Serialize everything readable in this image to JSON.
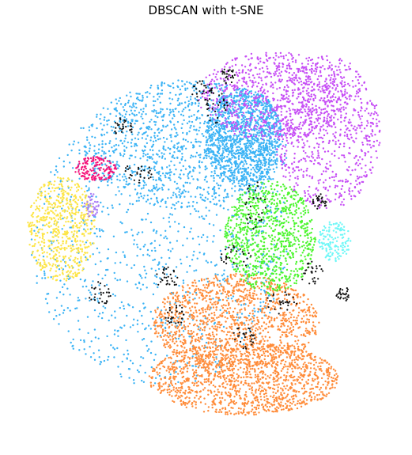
{
  "chart_data": {
    "type": "scatter",
    "title": "DBSCAN with t-SNE",
    "xlabel": "",
    "ylabel": "",
    "axes_visible": false,
    "grid": false,
    "legend": "none",
    "xlim": [
      0,
      100
    ],
    "ylim": [
      0,
      100
    ],
    "series": [
      {
        "color": "#3bb3f5",
        "regions": [
          {
            "cx": 38,
            "cy": 48,
            "rx": 34,
            "ry": 36
          },
          {
            "cx": 45,
            "cy": 72,
            "rx": 27,
            "ry": 16
          },
          {
            "cx": 60,
            "cy": 74,
            "rx": 10,
            "ry": 12
          }
        ],
        "count": 3200
      },
      {
        "color": "#c64ef5",
        "regions": [
          {
            "cx": 68,
            "cy": 84,
            "rx": 20,
            "ry": 11
          },
          {
            "cx": 82,
            "cy": 75,
            "rx": 14,
            "ry": 19
          }
        ],
        "count": 1500
      },
      {
        "color": "#ff8c3a",
        "regions": [
          {
            "cx": 58,
            "cy": 28,
            "rx": 22,
            "ry": 12
          },
          {
            "cx": 60,
            "cy": 14,
            "rx": 25,
            "ry": 9
          }
        ],
        "count": 2600
      },
      {
        "color": "#4cf52e",
        "regions": [
          {
            "cx": 67,
            "cy": 49,
            "rx": 12,
            "ry": 14
          }
        ],
        "count": 900
      },
      {
        "color": "#fde547",
        "regions": [
          {
            "cx": 12,
            "cy": 51,
            "rx": 9,
            "ry": 13
          }
        ],
        "count": 600
      },
      {
        "color": "#6ff7f7",
        "regions": [
          {
            "cx": 84,
            "cy": 48,
            "rx": 4.5,
            "ry": 5
          }
        ],
        "count": 140
      },
      {
        "color": "#f5147a",
        "regions": [
          {
            "cx": 21,
            "cy": 66,
            "rx": 5.5,
            "ry": 3
          }
        ],
        "count": 150
      },
      {
        "color": "#a97df5",
        "regions": [
          {
            "cx": 20,
            "cy": 57,
            "rx": 2,
            "ry": 3
          }
        ],
        "count": 40
      },
      {
        "color": "#111111",
        "noise": true,
        "regions": [
          {
            "cx": 28,
            "cy": 76,
            "rx": 3,
            "ry": 3
          },
          {
            "cx": 32,
            "cy": 65,
            "rx": 4,
            "ry": 2.5
          },
          {
            "cx": 53,
            "cy": 81,
            "rx": 3,
            "ry": 4
          },
          {
            "cx": 63,
            "cy": 57,
            "rx": 3,
            "ry": 6
          },
          {
            "cx": 58,
            "cy": 44,
            "rx": 4,
            "ry": 3
          },
          {
            "cx": 40,
            "cy": 39,
            "rx": 3,
            "ry": 3
          },
          {
            "cx": 42,
            "cy": 30,
            "rx": 3,
            "ry": 2.5
          },
          {
            "cx": 22,
            "cy": 35,
            "rx": 3,
            "ry": 3
          },
          {
            "cx": 70,
            "cy": 33,
            "rx": 4,
            "ry": 3
          },
          {
            "cx": 78,
            "cy": 40,
            "rx": 3,
            "ry": 3
          },
          {
            "cx": 86,
            "cy": 35,
            "rx": 2,
            "ry": 2
          },
          {
            "cx": 60,
            "cy": 24,
            "rx": 3,
            "ry": 3
          },
          {
            "cx": 49,
            "cy": 85,
            "rx": 3,
            "ry": 3
          },
          {
            "cx": 56,
            "cy": 89,
            "rx": 2,
            "ry": 2
          },
          {
            "cx": 80,
            "cy": 58,
            "rx": 2,
            "ry": 2
          }
        ],
        "count": 420
      }
    ]
  }
}
